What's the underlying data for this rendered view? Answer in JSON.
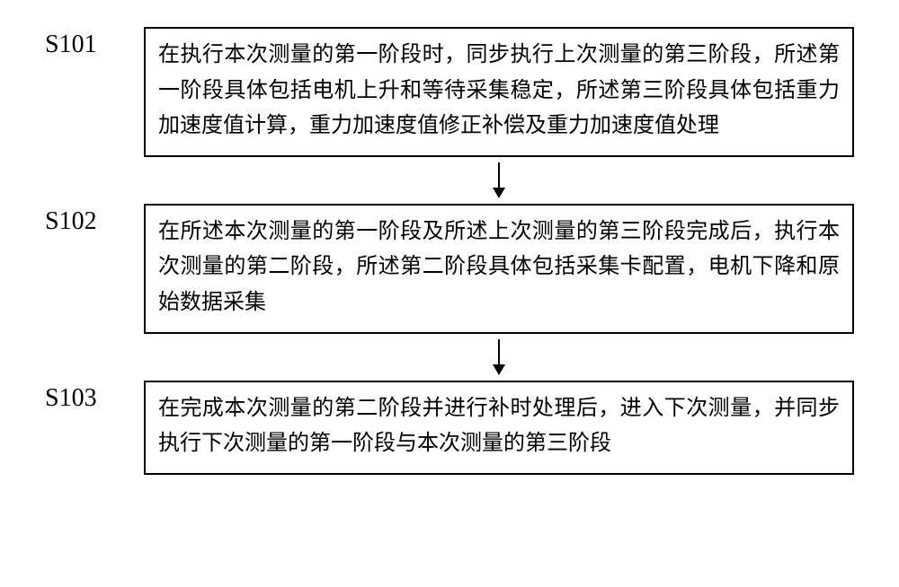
{
  "diagram": {
    "type": "flowchart",
    "background_color": "#ffffff",
    "border_color": "#000000",
    "text_color": "#000000",
    "arrow_color": "#000000",
    "label_fontsize": 28,
    "body_fontsize": 24,
    "box_border_width": 2,
    "arrow": {
      "length": 40,
      "stroke_width": 2,
      "head_w": 14,
      "head_h": 12
    },
    "steps": [
      {
        "id": "S101",
        "text": "在执行本次测量的第一阶段时，同步执行上次测量的第三阶段，所述第一阶段具体包括电机上升和等待采集稳定，所述第三阶段具体包括重力加速度值计算，重力加速度值修正补偿及重力加速度值处理"
      },
      {
        "id": "S102",
        "text": "在所述本次测量的第一阶段及所述上次测量的第三阶段完成后，执行本次测量的第二阶段，所述第二阶段具体包括采集卡配置，电机下降和原始数据采集"
      },
      {
        "id": "S103",
        "text": "在完成本次测量的第二阶段并进行补时处理后，进入下次测量，并同步执行下次测量的第一阶段与本次测量的第三阶段"
      }
    ]
  }
}
